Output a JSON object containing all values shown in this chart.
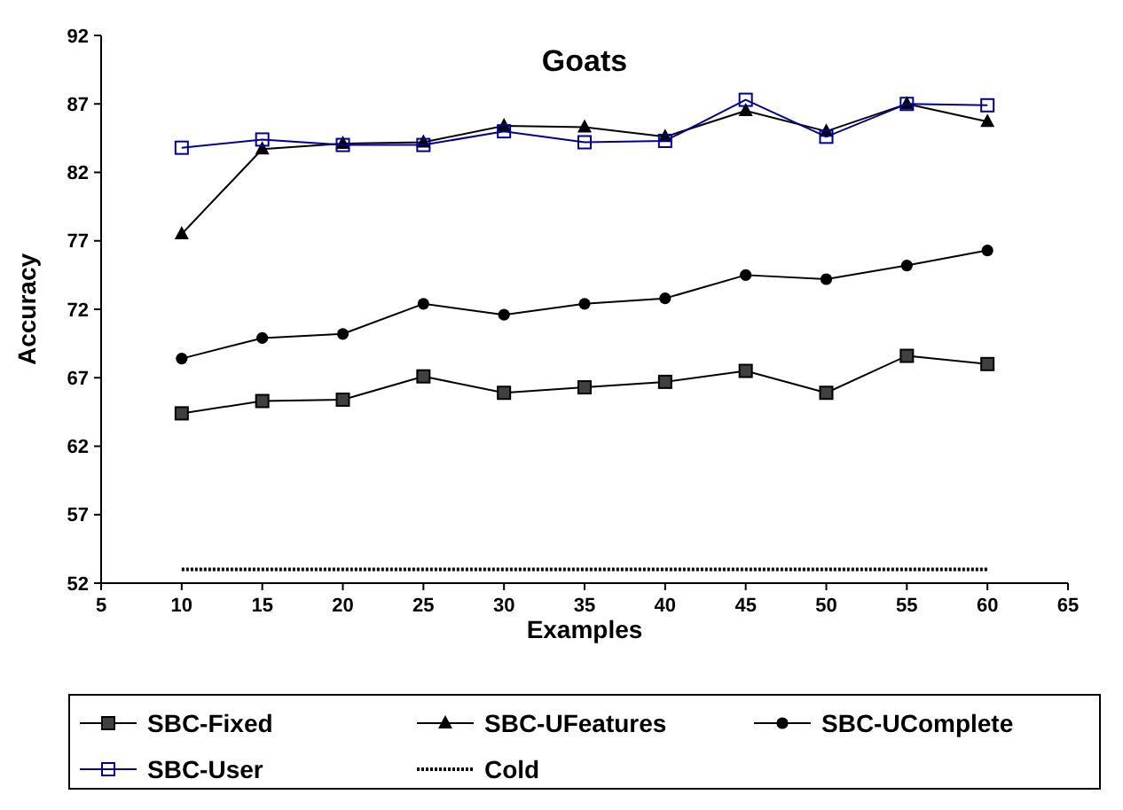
{
  "chart_data": {
    "type": "line",
    "title": "Goats",
    "xlabel": "Examples",
    "ylabel": "Accuracy",
    "x": [
      10,
      15,
      20,
      25,
      30,
      35,
      40,
      45,
      50,
      55,
      60
    ],
    "xlim": [
      5,
      65
    ],
    "xticks": [
      5,
      10,
      15,
      20,
      25,
      30,
      35,
      40,
      45,
      50,
      55,
      60,
      65
    ],
    "ylim": [
      52,
      92
    ],
    "yticks": [
      52,
      57,
      62,
      67,
      72,
      77,
      82,
      87,
      92
    ],
    "grid": false,
    "legend": "bottom",
    "series": [
      {
        "name": "SBC-Fixed",
        "color": "#000000",
        "marker": "square",
        "values": [
          64.4,
          65.3,
          65.4,
          67.1,
          65.9,
          66.3,
          66.7,
          67.5,
          65.9,
          68.6,
          68.0
        ]
      },
      {
        "name": "SBC-UFeatures",
        "color": "#000000",
        "marker": "triangle",
        "values": [
          77.5,
          83.7,
          84.1,
          84.2,
          85.4,
          85.3,
          84.6,
          86.5,
          85.0,
          87.0,
          85.7
        ]
      },
      {
        "name": "SBC-UComplete",
        "color": "#000000",
        "marker": "circle",
        "values": [
          68.4,
          69.9,
          70.2,
          72.4,
          71.6,
          72.4,
          72.8,
          74.5,
          74.2,
          75.2,
          76.3
        ]
      },
      {
        "name": "SBC-User",
        "color": "#000099",
        "marker": "square",
        "values": [
          83.8,
          84.4,
          84.0,
          84.0,
          85.0,
          84.2,
          84.3,
          87.3,
          84.6,
          87.0,
          86.9
        ]
      },
      {
        "name": "Cold",
        "color": "#000000",
        "marker": "none",
        "line_style": "dotted",
        "values": [
          53,
          53,
          53,
          53,
          53,
          53,
          53,
          53,
          53,
          53,
          53
        ]
      }
    ]
  }
}
